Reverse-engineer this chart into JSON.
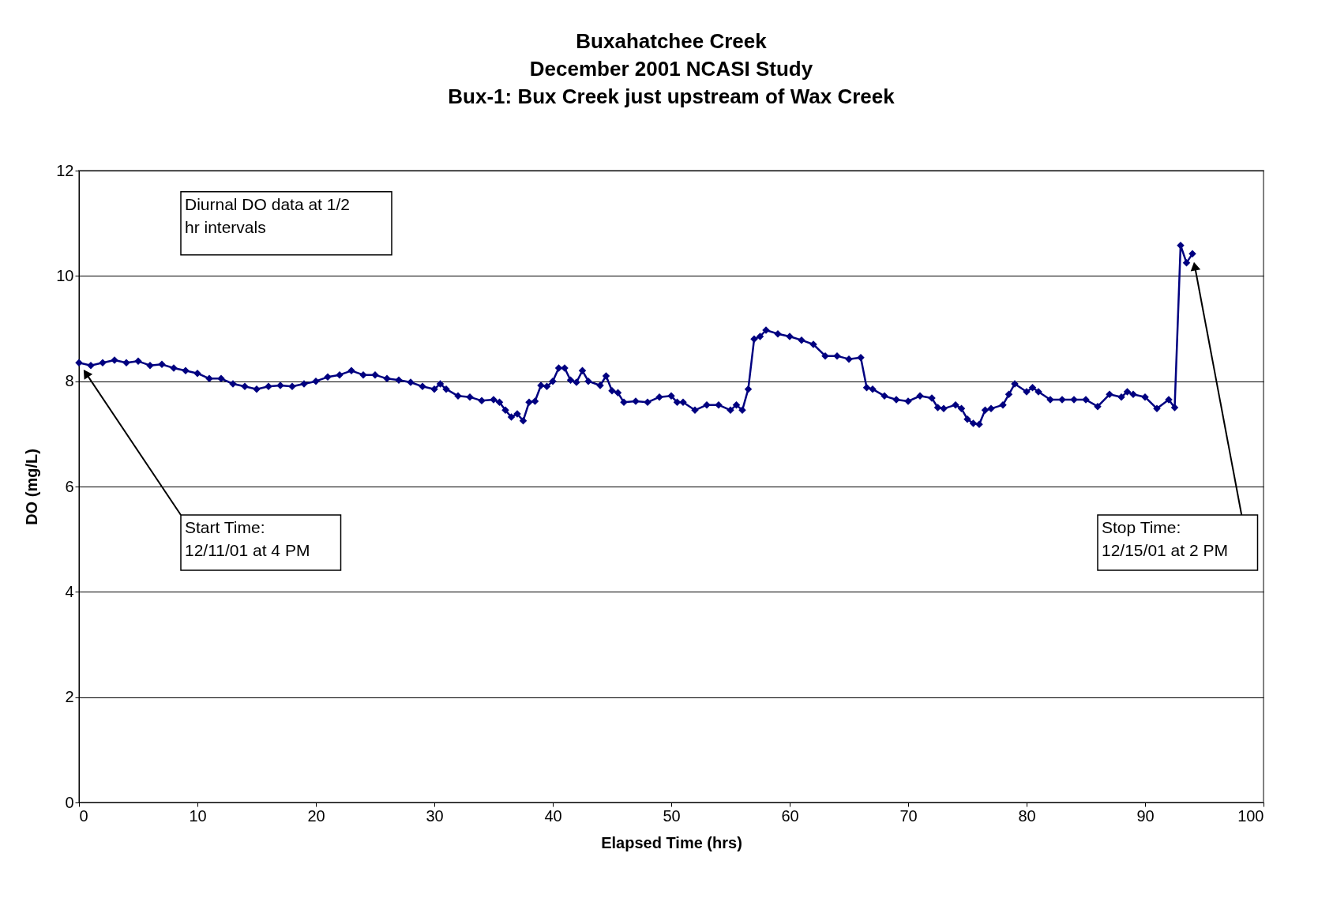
{
  "chart_data": {
    "type": "line",
    "title": "Buxahatchee Creek\nDecember 2001 NCASI Study\nBux-1: Bux Creek just upstream of Wax Creek",
    "xlabel": "Elapsed Time (hrs)",
    "ylabel": "DO (mg/L)",
    "x": [
      0,
      1,
      2,
      3,
      4,
      5,
      6,
      7,
      8,
      9,
      10,
      11,
      12,
      13,
      14,
      15,
      16,
      17,
      18,
      19,
      20,
      21,
      22,
      23,
      24,
      25,
      26,
      27,
      28,
      29,
      30,
      30.5,
      31,
      32,
      33,
      34,
      35,
      35.5,
      36,
      36.5,
      37,
      37.5,
      38,
      38.5,
      39,
      39.5,
      40,
      40.5,
      41,
      41.5,
      42,
      42.5,
      43,
      44,
      44.5,
      45,
      45.5,
      46,
      47,
      48,
      49,
      50,
      50.5,
      51,
      52,
      53,
      54,
      55,
      55.5,
      56,
      56.5,
      57,
      57.5,
      58,
      59,
      60,
      61,
      62,
      63,
      64,
      65,
      66,
      66.5,
      67,
      68,
      69,
      70,
      71,
      72,
      72.5,
      73,
      74,
      74.5,
      75,
      75.5,
      76,
      76.5,
      77,
      78,
      78.5,
      79,
      80,
      80.5,
      81,
      82,
      83,
      84,
      85,
      86,
      87,
      88,
      88.5,
      89,
      90,
      91,
      92,
      92.5,
      93,
      93.5,
      94
    ],
    "series": [
      {
        "color": "#000080",
        "values": [
          8.35,
          8.3,
          8.35,
          8.4,
          8.35,
          8.38,
          8.3,
          8.32,
          8.25,
          8.2,
          8.15,
          8.05,
          8.05,
          7.95,
          7.9,
          7.85,
          7.9,
          7.92,
          7.9,
          7.95,
          8.0,
          8.08,
          8.12,
          8.2,
          8.12,
          8.12,
          8.05,
          8.02,
          7.98,
          7.9,
          7.85,
          7.95,
          7.85,
          7.72,
          7.7,
          7.63,
          7.65,
          7.6,
          7.45,
          7.32,
          7.38,
          7.25,
          7.6,
          7.62,
          7.92,
          7.9,
          8.0,
          8.25,
          8.25,
          8.02,
          7.98,
          8.2,
          8.0,
          7.92,
          8.1,
          7.82,
          7.78,
          7.6,
          7.62,
          7.6,
          7.7,
          7.72,
          7.6,
          7.6,
          7.45,
          7.55,
          7.55,
          7.45,
          7.55,
          7.45,
          7.85,
          8.8,
          8.85,
          8.97,
          8.9,
          8.85,
          8.78,
          8.7,
          8.48,
          8.48,
          8.42,
          8.45,
          7.88,
          7.85,
          7.72,
          7.65,
          7.62,
          7.72,
          7.68,
          7.5,
          7.48,
          7.55,
          7.48,
          7.28,
          7.2,
          7.18,
          7.45,
          7.48,
          7.55,
          7.75,
          7.95,
          7.8,
          7.88,
          7.8,
          7.65,
          7.65,
          7.65,
          7.65,
          7.52,
          7.75,
          7.7,
          7.8,
          7.75,
          7.7,
          7.48,
          7.65,
          7.5,
          10.58,
          10.25,
          10.42
        ]
      }
    ],
    "marker": "diamond",
    "line_style": "solid",
    "xlim": [
      0,
      100
    ],
    "xticks": [
      0,
      10,
      20,
      30,
      40,
      50,
      60,
      70,
      80,
      90,
      100
    ],
    "ylim": [
      0,
      12
    ],
    "yticks": [
      0,
      2,
      4,
      6,
      8,
      10,
      12
    ],
    "grid": "y",
    "annotations": [
      "Diurnal DO data at 1/2\nhr intervals",
      "Start Time:\n12/11/01 at 4 PM",
      "Stop Time:\n12/15/01 at 2 PM"
    ]
  }
}
